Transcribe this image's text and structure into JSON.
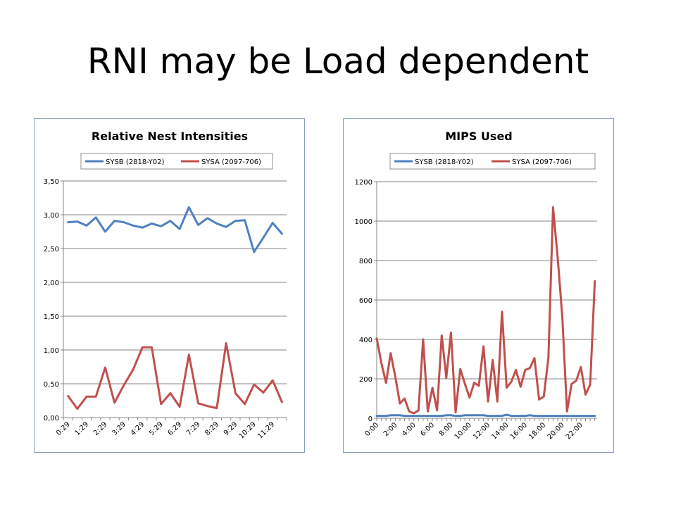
{
  "slide": {
    "title": "RNI may be Load dependent"
  },
  "chart_data": [
    {
      "type": "line",
      "title": "Relative Nest Intensities",
      "xlabel": "",
      "ylabel": "",
      "ylim": [
        0,
        3.5
      ],
      "yticks": [
        "0,00",
        "0,50",
        "1,00",
        "1,50",
        "2,00",
        "2,50",
        "3,00",
        "3,50"
      ],
      "xtick_labels": [
        "0:29",
        "1:29",
        "2:29",
        "3:29",
        "4:29",
        "5:29",
        "6:29",
        "7:29",
        "8:29",
        "9:29",
        "10:29",
        "11:29"
      ],
      "x": [
        "0:29",
        "0:59",
        "1:29",
        "1:59",
        "2:29",
        "2:59",
        "3:29",
        "3:59",
        "4:29",
        "4:59",
        "5:29",
        "5:59",
        "6:29",
        "6:59",
        "7:29",
        "7:59",
        "8:29",
        "8:59",
        "9:29",
        "9:59",
        "10:29",
        "10:59",
        "11:29",
        "11:59"
      ],
      "legend": "top",
      "grid": true,
      "series": [
        {
          "name": "SYSB (2818-Y02)",
          "color": "#4f81bd",
          "values": [
            2.89,
            2.9,
            2.84,
            2.96,
            2.75,
            2.91,
            2.89,
            2.84,
            2.81,
            2.87,
            2.83,
            2.91,
            2.79,
            3.11,
            2.85,
            2.95,
            2.87,
            2.82,
            2.91,
            2.92,
            2.45,
            2.66,
            2.88,
            2.72
          ]
        },
        {
          "name": "SYSA (2097-706)",
          "color": "#c0504d",
          "values": [
            0.32,
            0.13,
            0.31,
            0.31,
            0.74,
            0.22,
            0.48,
            0.71,
            1.04,
            1.04,
            0.2,
            0.36,
            0.16,
            0.93,
            0.21,
            0.17,
            0.14,
            1.1,
            0.36,
            0.2,
            0.49,
            0.37,
            0.55,
            0.23
          ]
        }
      ]
    },
    {
      "type": "line",
      "title": "MIPS Used",
      "xlabel": "",
      "ylabel": "",
      "ylim": [
        0,
        1200
      ],
      "yticks": [
        "0",
        "200",
        "400",
        "600",
        "800",
        "1000",
        "1200"
      ],
      "xtick_labels": [
        "0:00",
        "2:00",
        "4:00",
        "6:00",
        "8:00",
        "10:00",
        "12:00",
        "14:00",
        "16:00",
        "18:00",
        "20:00",
        "22:00"
      ],
      "x_hours": [
        0,
        0.5,
        1,
        1.5,
        2,
        2.5,
        3,
        3.5,
        4,
        4.5,
        5,
        5.5,
        6,
        6.5,
        7,
        7.5,
        8,
        8.5,
        9,
        9.5,
        10,
        10.5,
        11,
        11.5,
        12,
        12.5,
        13,
        13.5,
        14,
        14.5,
        15,
        15.5,
        16,
        16.5,
        17,
        17.5,
        18,
        18.5,
        19,
        19.5,
        20,
        20.5,
        21,
        21.5,
        22,
        22.5,
        23,
        23.5
      ],
      "legend": "top",
      "grid": true,
      "series": [
        {
          "name": "SYSB (2818-Y02)",
          "color": "#4f81bd",
          "values": [
            12,
            12,
            12,
            15,
            15,
            15,
            12,
            12,
            12,
            12,
            12,
            12,
            12,
            12,
            12,
            15,
            15,
            12,
            12,
            15,
            15,
            15,
            15,
            15,
            12,
            12,
            12,
            12,
            18,
            12,
            12,
            12,
            12,
            15,
            12,
            12,
            12,
            12,
            12,
            12,
            12,
            12,
            12,
            12,
            12,
            12,
            12,
            12
          ]
        },
        {
          "name": "SYSA (2097-706)",
          "color": "#c0504d",
          "values": [
            405,
            280,
            180,
            330,
            210,
            75,
            100,
            35,
            25,
            40,
            400,
            35,
            155,
            40,
            420,
            205,
            435,
            30,
            250,
            175,
            105,
            180,
            165,
            365,
            85,
            295,
            85,
            540,
            155,
            185,
            245,
            160,
            245,
            255,
            305,
            95,
            110,
            305,
            1070,
            815,
            510,
            35,
            175,
            190,
            260,
            120,
            170,
            695
          ]
        }
      ]
    }
  ]
}
